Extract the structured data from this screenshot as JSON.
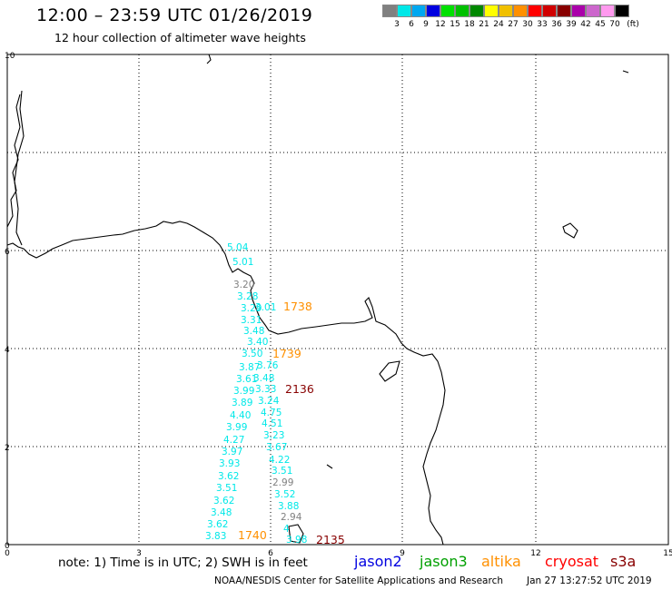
{
  "title": "12:00 – 23:59 UTC 01/26/2019",
  "subtitle": "12 hour collection of altimeter wave heights",
  "legend": {
    "unit": "(ft)",
    "bins": [
      {
        "label": "3",
        "color": "#808080"
      },
      {
        "label": "6",
        "color": "#00e8e8"
      },
      {
        "label": "9",
        "color": "#00a8f0"
      },
      {
        "label": "12",
        "color": "#0000e0"
      },
      {
        "label": "15",
        "color": "#00e000"
      },
      {
        "label": "18",
        "color": "#00c000"
      },
      {
        "label": "21",
        "color": "#008800"
      },
      {
        "label": "24",
        "color": "#ffff00"
      },
      {
        "label": "27",
        "color": "#f0c000"
      },
      {
        "label": "30",
        "color": "#ff9000"
      },
      {
        "label": "33",
        "color": "#ff0000"
      },
      {
        "label": "36",
        "color": "#d00000"
      },
      {
        "label": "39",
        "color": "#880000"
      },
      {
        "label": "42",
        "color": "#aa00aa"
      },
      {
        "label": "45",
        "color": "#cc66cc"
      },
      {
        "label": "70",
        "color": "#ff99ee"
      },
      {
        "label": "",
        "color": "#000000"
      }
    ]
  },
  "axes": {
    "x_ticks": [
      "0",
      "3",
      "6",
      "9",
      "12",
      "15"
    ],
    "y_ticks": [
      "0",
      "2",
      "4",
      "6",
      "10"
    ]
  },
  "pass_times": [
    {
      "label": "1738",
      "color": "#ff9000"
    },
    {
      "label": "1739",
      "color": "#ff9000"
    },
    {
      "label": "2136",
      "color": "#880000"
    },
    {
      "label": "1740",
      "color": "#ff9000"
    },
    {
      "label": "2135",
      "color": "#880000"
    }
  ],
  "wave_heights": [
    {
      "v": "5.04",
      "c": "#00e8e8"
    },
    {
      "v": "5.01",
      "c": "#00e8e8"
    },
    {
      "v": "3.20",
      "c": "#808080"
    },
    {
      "v": "3.28",
      "c": "#00e8e8"
    },
    {
      "v": "3.01",
      "c": "#00e8e8"
    },
    {
      "v": "3.29",
      "c": "#00e8e8"
    },
    {
      "v": "3.31",
      "c": "#00e8e8"
    },
    {
      "v": "3.48",
      "c": "#00e8e8"
    },
    {
      "v": "3.40",
      "c": "#00e8e8"
    },
    {
      "v": "3.50",
      "c": "#00e8e8"
    },
    {
      "v": "3.76",
      "c": "#00e8e8"
    },
    {
      "v": "3.87",
      "c": "#00e8e8"
    },
    {
      "v": "3.61",
      "c": "#00e8e8"
    },
    {
      "v": "3.48",
      "c": "#00e8e8"
    },
    {
      "v": "3.99",
      "c": "#00e8e8"
    },
    {
      "v": "3.33",
      "c": "#00e8e8"
    },
    {
      "v": "3.89",
      "c": "#00e8e8"
    },
    {
      "v": "3.24",
      "c": "#00e8e8"
    },
    {
      "v": "4.40",
      "c": "#00e8e8"
    },
    {
      "v": "4.75",
      "c": "#00e8e8"
    },
    {
      "v": "3.99",
      "c": "#00e8e8"
    },
    {
      "v": "4.51",
      "c": "#00e8e8"
    },
    {
      "v": "4.27",
      "c": "#00e8e8"
    },
    {
      "v": "3.23",
      "c": "#00e8e8"
    },
    {
      "v": "3.97",
      "c": "#00e8e8"
    },
    {
      "v": "3.67",
      "c": "#00e8e8"
    },
    {
      "v": "3.93",
      "c": "#00e8e8"
    },
    {
      "v": "4.22",
      "c": "#00e8e8"
    },
    {
      "v": "3.62",
      "c": "#00e8e8"
    },
    {
      "v": "3.51",
      "c": "#00e8e8"
    },
    {
      "v": "3.51",
      "c": "#00e8e8"
    },
    {
      "v": "2.99",
      "c": "#808080"
    },
    {
      "v": "3.62",
      "c": "#00e8e8"
    },
    {
      "v": "3.52",
      "c": "#00e8e8"
    },
    {
      "v": "3.48",
      "c": "#00e8e8"
    },
    {
      "v": "3.88",
      "c": "#00e8e8"
    },
    {
      "v": "3.62",
      "c": "#00e8e8"
    },
    {
      "v": "2.94",
      "c": "#808080"
    },
    {
      "v": "3.83",
      "c": "#00e8e8"
    },
    {
      "v": "4",
      "c": "#00e8e8"
    },
    {
      "v": "3.98",
      "c": "#00e8e8"
    }
  ],
  "note": "note:  1) Time is in UTC; 2) SWH is in feet",
  "satellites": [
    {
      "name": "jason2",
      "color": "#0000e0"
    },
    {
      "name": "jason3",
      "color": "#00a000"
    },
    {
      "name": "altika",
      "color": "#ff9000"
    },
    {
      "name": "cryosat",
      "color": "#ff0000"
    },
    {
      "name": "s3a",
      "color": "#880000"
    }
  ],
  "footer": {
    "credit": "NOAA/NESDIS Center for Satellite Applications and Research",
    "timestamp": "Jan 27 13:27:52 UTC 2019"
  }
}
